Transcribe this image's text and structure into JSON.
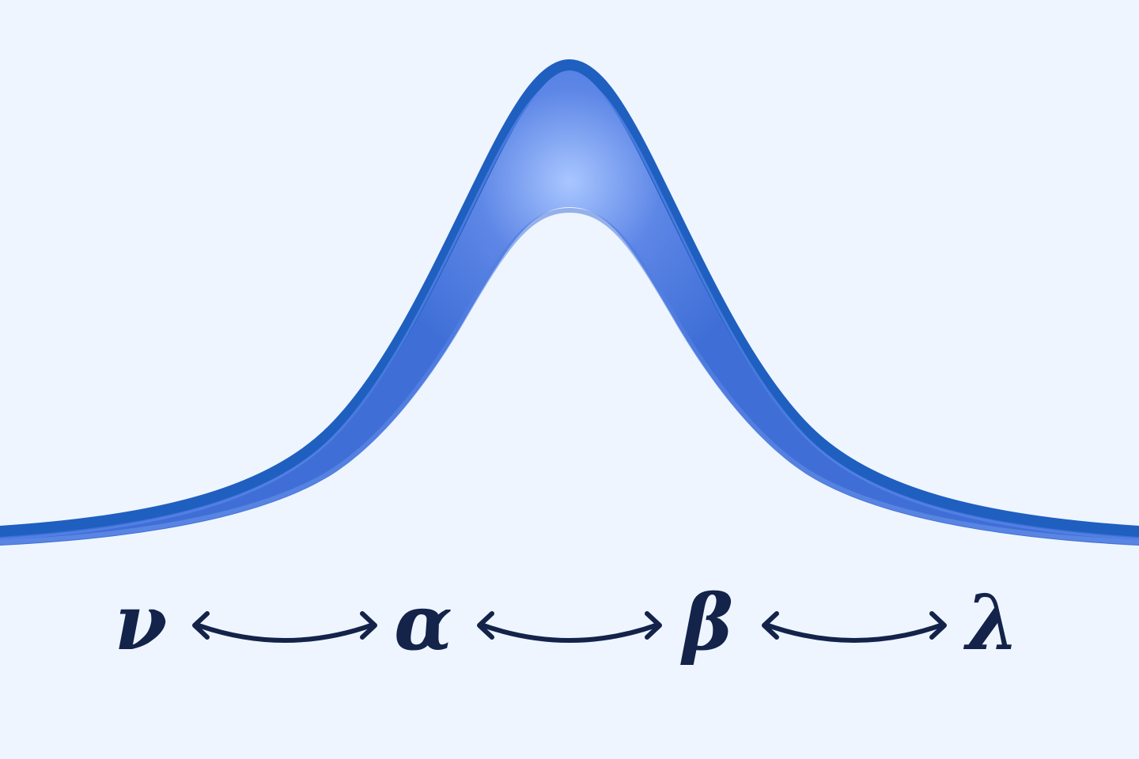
{
  "colors": {
    "background": "#eef5ff",
    "curve_stroke": "#1f5fc0",
    "curve_fill_dark": "#3f6fd6",
    "curve_fill_light": "#a9c6ff",
    "ink": "#13234a"
  },
  "symbols": [
    "ν",
    "α",
    "β",
    "λ"
  ],
  "connectors": [
    {
      "from": "ν",
      "to": "α",
      "icon": "double-headed-arrow-icon"
    },
    {
      "from": "α",
      "to": "β",
      "icon": "double-headed-arrow-icon"
    },
    {
      "from": "β",
      "to": "λ",
      "icon": "double-headed-arrow-icon"
    }
  ]
}
